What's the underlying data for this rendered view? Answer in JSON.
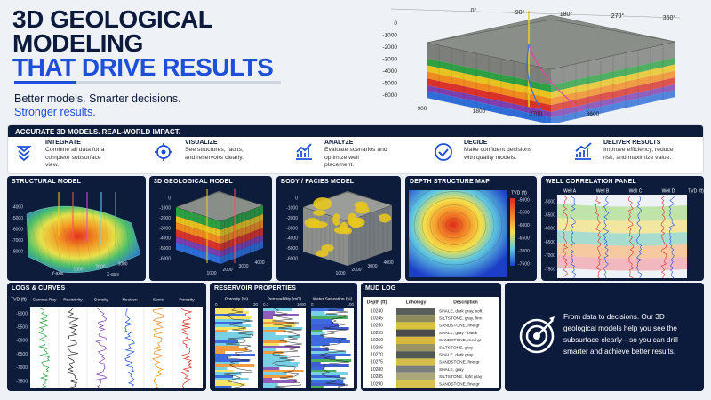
{
  "header": {
    "title_lines": [
      "3D GEOLOGICAL",
      "MODELING",
      "THAT DRIVE RESULTS"
    ],
    "tagline": [
      "Better models. Smarter decisions.",
      "Stronger results."
    ]
  },
  "hero": {
    "azimuth_labels": [
      "0°",
      "90°",
      "180°",
      "270°",
      "360°"
    ],
    "depth_labels": [
      "0",
      "-1000",
      "-2000",
      "-3000",
      "-4000",
      "-5000",
      "-6000"
    ],
    "x_labels": [
      "900",
      "1800",
      "2700",
      "3600"
    ]
  },
  "banner": {
    "title": "ACCURATE 3D MODELS. REAL-WORLD IMPACT.",
    "features": [
      {
        "title": "INTEGRATE",
        "text": "Combine all data for a complete subsurface view."
      },
      {
        "title": "VISUALIZE",
        "text": "See structures, faults, and reservoirs clearly."
      },
      {
        "title": "ANALYZE",
        "text": "Evaluate scenarios and optimize well placement."
      },
      {
        "title": "DECIDE",
        "text": "Make confident decisions with quality models."
      },
      {
        "title": "DELIVER RESULTS",
        "text": "Improve efficiency, reduce risk, and maximize value."
      }
    ]
  },
  "panels": {
    "structural": {
      "title": "STRUCTURAL MODEL",
      "yticks": [
        "-4000",
        "-5000",
        "-6000",
        "-7000",
        "-8000"
      ],
      "xticks": [
        "1000",
        "2000",
        "3000"
      ],
      "x_label": "X-axis",
      "y_label": "Y-axis"
    },
    "geo3d": {
      "title": "3D GEOLOGICAL MODEL",
      "yticks": [
        "0",
        "-1000",
        "-2000",
        "-3000",
        "-4000",
        "-5000",
        "-6000"
      ],
      "xticks": [
        "1000",
        "2000",
        "3000",
        "4000"
      ]
    },
    "facies": {
      "title": "BODY / FACIES MODEL",
      "yticks": [
        "0",
        "-1000",
        "-2000",
        "-3000",
        "-4000",
        "-5000",
        "-6000"
      ],
      "xticks": [
        "1000",
        "2000",
        "3000",
        "4000"
      ]
    },
    "depth_map": {
      "title": "DEPTH STRUCTURE MAP",
      "legend_title": "TVD (ft)",
      "legend_ticks": [
        "-5000",
        "-5500",
        "-6000",
        "-6500",
        "-7000",
        "-7500"
      ]
    },
    "well_correlation": {
      "title": "WELL CORRELATION PANEL",
      "wells": [
        "Well A",
        "Well B",
        "Well C",
        "Well D"
      ],
      "axis_title": "TVD (ft)",
      "ticks": [
        "-5000",
        "-5500",
        "-6000",
        "-6500",
        "-7000",
        "-7500"
      ]
    },
    "logs": {
      "title": "LOGS & CURVES",
      "depth_title": "TVD (ft)",
      "tracks": [
        "Gamma Ray",
        "Resistivity",
        "Density",
        "Neutron",
        "Sonic",
        "Porosity"
      ],
      "ticks": [
        "-5000",
        "-5500",
        "-6000",
        "-6500",
        "-7000",
        "-7500"
      ]
    },
    "reservoir": {
      "title": "RESERVOIR PROPERTIES",
      "tracks": [
        {
          "name": "Porosity (%)",
          "scale": [
            "0",
            "30"
          ]
        },
        {
          "name": "Permeability (mD)",
          "scale": [
            "0.1",
            "1000"
          ]
        },
        {
          "name": "Water Saturation (%)",
          "scale": [
            "0",
            "100"
          ]
        }
      ]
    },
    "mud_log": {
      "title": "MUD LOG",
      "headers": [
        "Depth (ft)",
        "Lithology",
        "Description"
      ],
      "rows": [
        {
          "depth": "10240",
          "description": "SHALE, dark gray, soft",
          "color": "#5a5e5a"
        },
        {
          "depth": "10245",
          "description": "SILTSTONE, gray, firm",
          "color": "#8f8c5c"
        },
        {
          "depth": "10250",
          "description": "SANDSTONE, fine gr",
          "color": "#d8c23f"
        },
        {
          "depth": "10255",
          "description": "SHALE, gray - black",
          "color": "#4a4d4a"
        },
        {
          "depth": "10260",
          "description": "SANDSTONE, med gr",
          "color": "#d9b93a"
        },
        {
          "depth": "10265",
          "description": "SILTSTONE, gray",
          "color": "#9a9566"
        },
        {
          "depth": "10270",
          "description": "SHALE, dark gray",
          "color": "#555955"
        },
        {
          "depth": "10275",
          "description": "SANDSTONE, fine gr",
          "color": "#d2be48"
        },
        {
          "depth": "10280",
          "description": "SHALE, gray",
          "color": "#7b7f7b"
        },
        {
          "depth": "10285",
          "description": "SILTSTONE, light gray",
          "color": "#aaa77a"
        },
        {
          "depth": "10290",
          "description": "SANDSTONE, fine gr",
          "color": "#d6c24c"
        }
      ]
    }
  },
  "cta": {
    "text": "From data to decisions. Our 3D geological models help you see the subsurface clearly—so you can drill smarter and achieve better results."
  }
}
